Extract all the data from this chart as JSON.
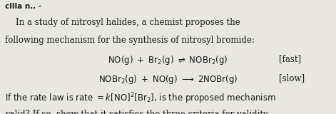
{
  "background_color": "#e8e8e0",
  "header": "cllla n.. -",
  "line1": "    In a study of nitrosyl halides, a chemist proposes the",
  "line2": "following mechanism for the synthesis of nitrosyl bromide:",
  "line6": "valid? If so, show that it satisfies the three criteria for validity.",
  "font_size": 8.5,
  "header_font_size": 7.5,
  "text_color": "#1a1a1a",
  "figsize": [
    4.71,
    1.6
  ],
  "dpi": 100
}
